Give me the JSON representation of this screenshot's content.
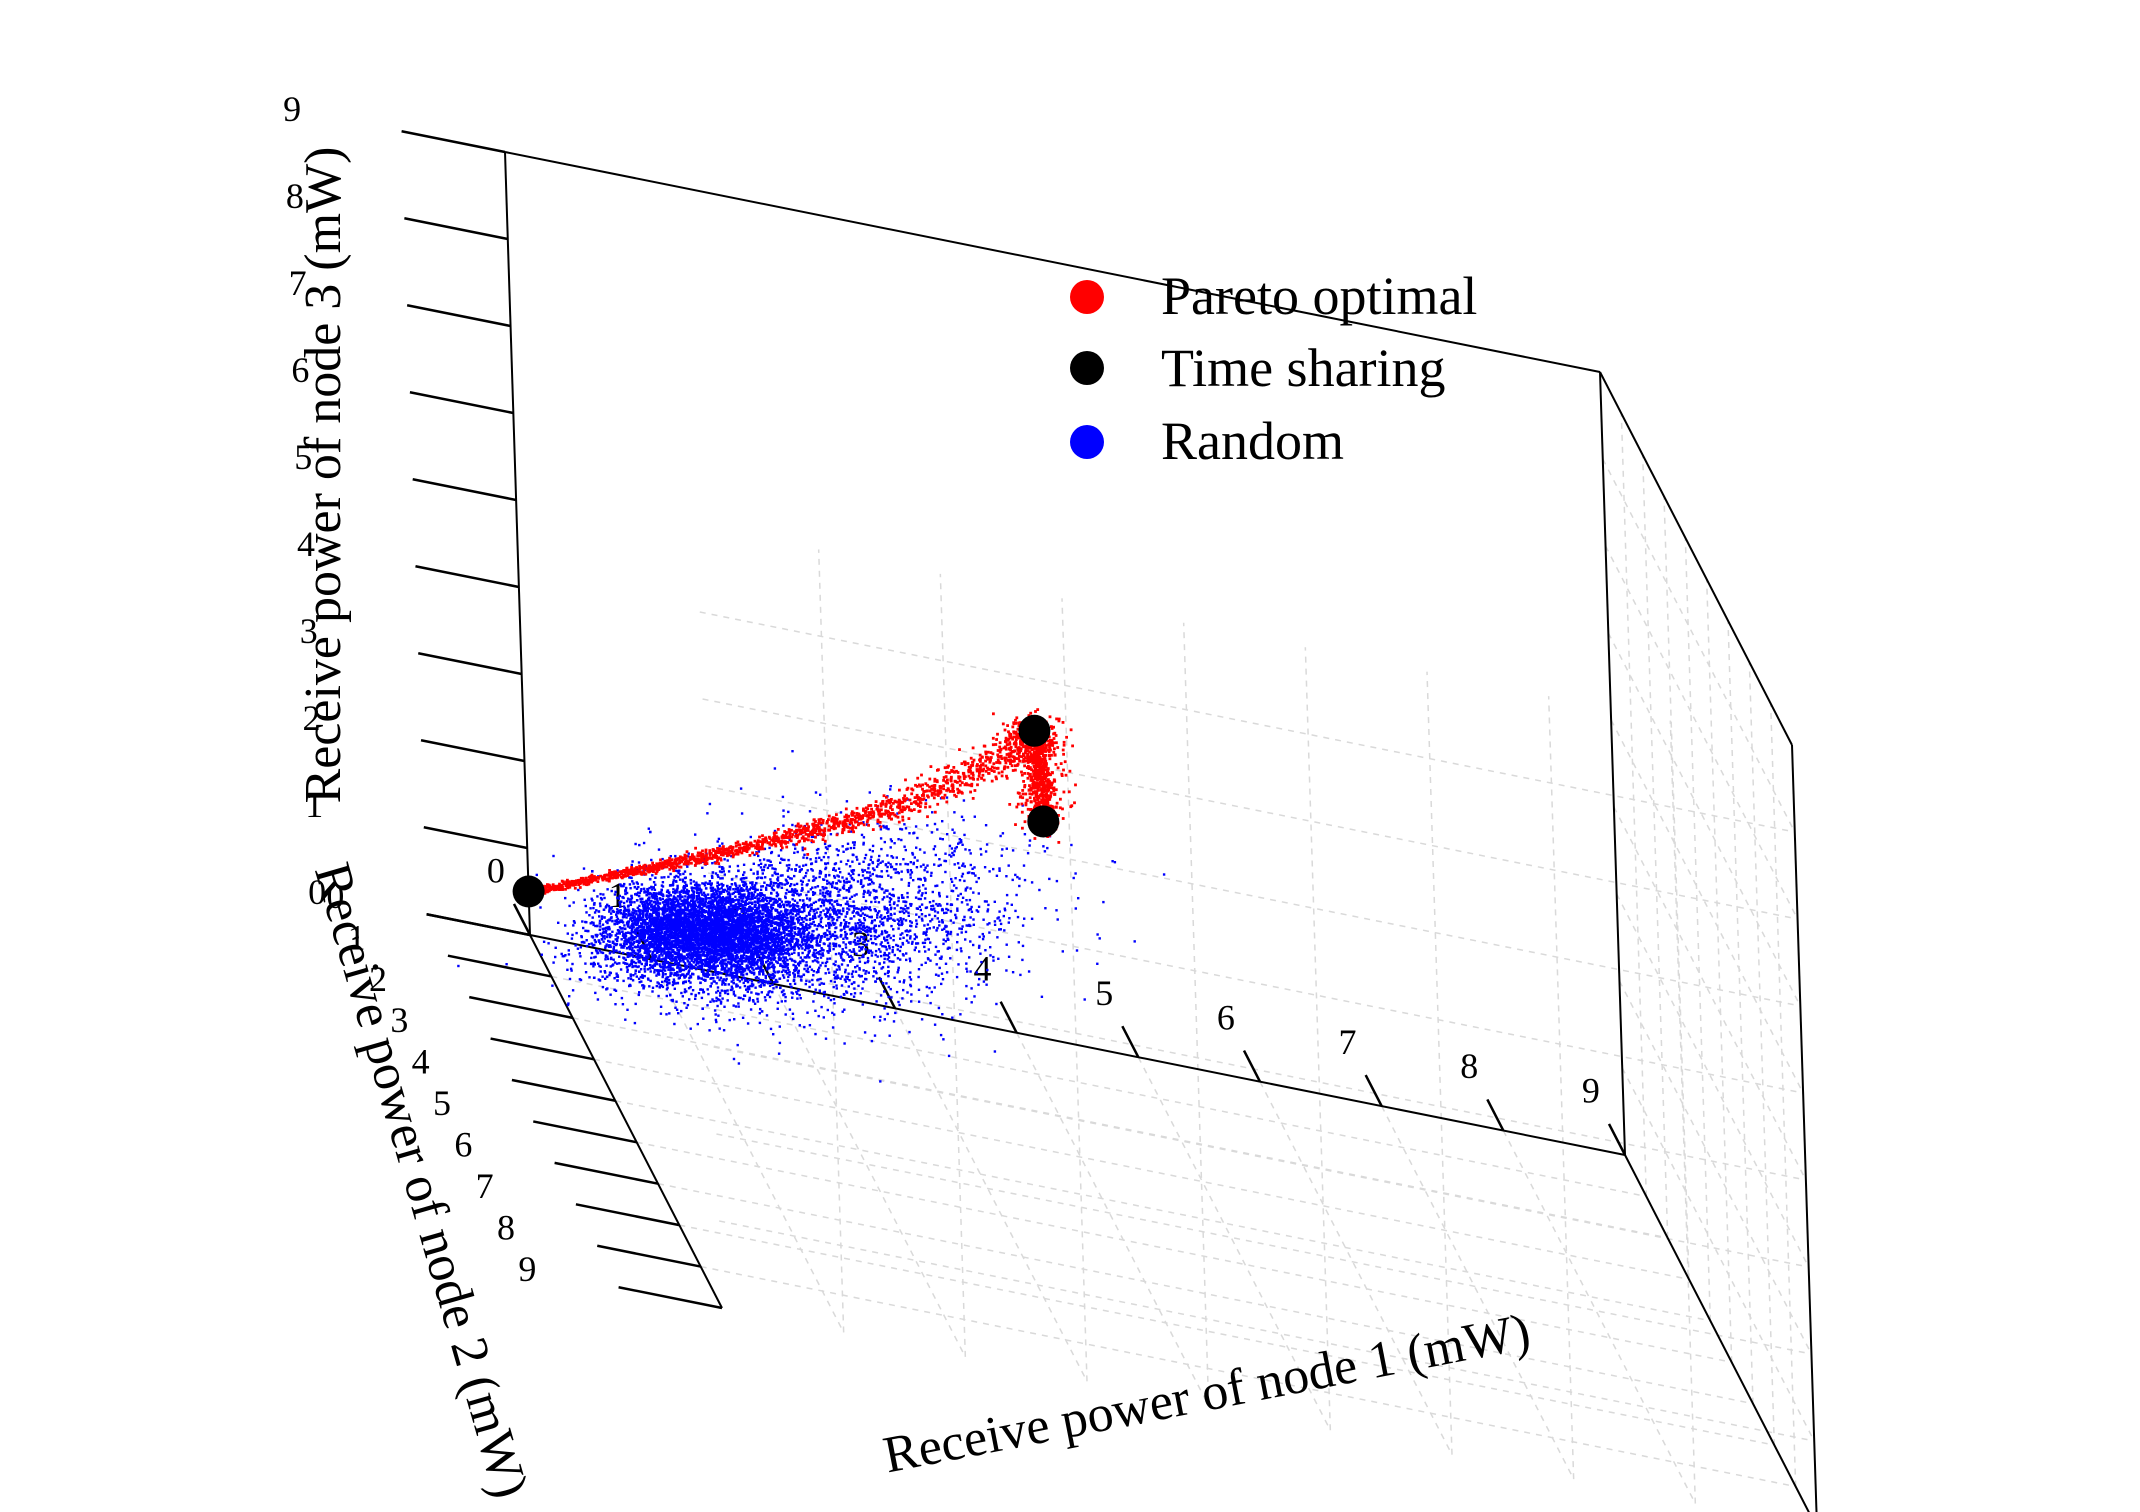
{
  "chart_data": {
    "type": "scatter",
    "title": "",
    "xlabel": "Receive power of node 1 (mW)",
    "ylabel": "Receive power of node 2 (mW)",
    "zlabel": "Receive power of node 3 (mW)",
    "xlim": [
      0,
      9
    ],
    "ylim": [
      0,
      9
    ],
    "zlim": [
      0,
      9
    ],
    "x_ticks": [
      "0",
      "1",
      "2",
      "3",
      "4",
      "5",
      "6",
      "7",
      "8",
      "9"
    ],
    "y_ticks": [
      "0",
      "1",
      "2",
      "3",
      "4",
      "5",
      "6",
      "7",
      "8",
      "9"
    ],
    "z_ticks": [
      "0",
      "1",
      "2",
      "3",
      "4",
      "5",
      "6",
      "7",
      "8",
      "9"
    ],
    "grid": true,
    "legend_position": "top-right",
    "series": [
      {
        "name": "Pareto optimal",
        "color": "#ff0000",
        "description_points": [
          {
            "x": 0.0,
            "y": 0.0,
            "z": 0.5
          },
          {
            "x": 0.3,
            "y": 1.0,
            "z": 1.2
          },
          {
            "x": 0.8,
            "y": 2.0,
            "z": 2.0
          },
          {
            "x": 1.3,
            "y": 2.8,
            "z": 2.7
          },
          {
            "x": 1.8,
            "y": 3.5,
            "z": 3.4
          },
          {
            "x": 2.3,
            "y": 4.2,
            "z": 4.1
          },
          {
            "x": 2.8,
            "y": 5.0,
            "z": 5.0
          },
          {
            "x": 3.2,
            "y": 5.6,
            "z": 5.8
          },
          {
            "x": 3.2,
            "y": 6.2,
            "z": 6.2
          },
          {
            "x": 3.2,
            "y": 6.5,
            "z": 5.3
          }
        ]
      },
      {
        "name": "Time sharing",
        "color": "#000000",
        "points": [
          {
            "x": 0.0,
            "y": 0.0,
            "z": 0.5
          },
          {
            "x": 3.2,
            "y": 6.2,
            "z": 6.2
          },
          {
            "x": 3.2,
            "y": 6.5,
            "z": 5.3
          }
        ]
      },
      {
        "name": "Random",
        "color": "#0000ff",
        "description_points": [
          {
            "x": 0.8,
            "y": 1.4,
            "z": 1.0
          },
          {
            "x": 1.5,
            "y": 2.5,
            "z": 1.6
          },
          {
            "x": 2.0,
            "y": 3.5,
            "z": 2.5
          },
          {
            "x": 2.5,
            "y": 4.5,
            "z": 3.3
          }
        ]
      }
    ]
  }
}
